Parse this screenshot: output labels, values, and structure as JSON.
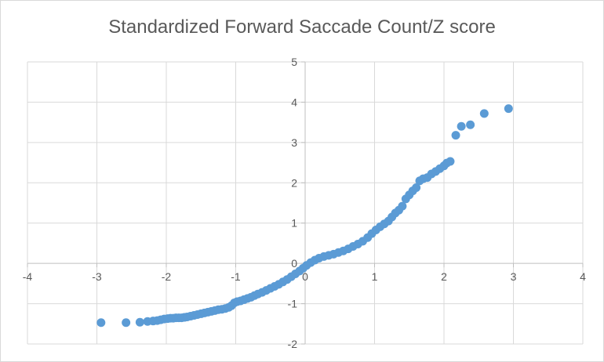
{
  "chart_data": {
    "type": "scatter",
    "title": "Standardized Forward Saccade Count/Z score",
    "xlabel": "",
    "ylabel": "",
    "xlim": [
      -4,
      4
    ],
    "ylim": [
      -2,
      5
    ],
    "xticks": [
      -4,
      -3,
      -2,
      -1,
      0,
      1,
      2,
      3,
      4
    ],
    "yticks": [
      -2,
      -1,
      0,
      1,
      2,
      3,
      4,
      5
    ],
    "grid": true,
    "legend": "none",
    "marker_color": "#5b9bd5",
    "series": [
      {
        "points": [
          [
            -2.94,
            -1.47
          ],
          [
            -2.58,
            -1.47
          ],
          [
            -2.38,
            -1.46
          ],
          [
            -2.27,
            -1.44
          ],
          [
            -2.19,
            -1.43
          ],
          [
            -2.13,
            -1.42
          ],
          [
            -2.08,
            -1.4
          ],
          [
            -2.03,
            -1.38
          ],
          [
            -1.98,
            -1.37
          ],
          [
            -1.94,
            -1.36
          ],
          [
            -1.9,
            -1.36
          ],
          [
            -1.86,
            -1.35
          ],
          [
            -1.82,
            -1.35
          ],
          [
            -1.78,
            -1.35
          ],
          [
            -1.74,
            -1.34
          ],
          [
            -1.7,
            -1.33
          ],
          [
            -1.65,
            -1.31
          ],
          [
            -1.6,
            -1.29
          ],
          [
            -1.55,
            -1.27
          ],
          [
            -1.5,
            -1.25
          ],
          [
            -1.45,
            -1.23
          ],
          [
            -1.4,
            -1.21
          ],
          [
            -1.35,
            -1.19
          ],
          [
            -1.3,
            -1.17
          ],
          [
            -1.25,
            -1.15
          ],
          [
            -1.2,
            -1.14
          ],
          [
            -1.15,
            -1.12
          ],
          [
            -1.1,
            -1.09
          ],
          [
            -1.06,
            -1.05
          ],
          [
            -1.02,
            -0.98
          ],
          [
            -0.98,
            -0.95
          ],
          [
            -0.93,
            -0.93
          ],
          [
            -0.88,
            -0.9
          ],
          [
            -0.83,
            -0.87
          ],
          [
            -0.78,
            -0.84
          ],
          [
            -0.73,
            -0.8
          ],
          [
            -0.68,
            -0.76
          ],
          [
            -0.62,
            -0.72
          ],
          [
            -0.56,
            -0.67
          ],
          [
            -0.5,
            -0.62
          ],
          [
            -0.44,
            -0.57
          ],
          [
            -0.38,
            -0.52
          ],
          [
            -0.32,
            -0.46
          ],
          [
            -0.26,
            -0.4
          ],
          [
            -0.2,
            -0.33
          ],
          [
            -0.14,
            -0.26
          ],
          [
            -0.08,
            -0.19
          ],
          [
            -0.03,
            -0.12
          ],
          [
            0.02,
            -0.05
          ],
          [
            0.08,
            0.02
          ],
          [
            0.14,
            0.08
          ],
          [
            0.2,
            0.13
          ],
          [
            0.27,
            0.17
          ],
          [
            0.34,
            0.2
          ],
          [
            0.41,
            0.23
          ],
          [
            0.48,
            0.27
          ],
          [
            0.55,
            0.31
          ],
          [
            0.62,
            0.36
          ],
          [
            0.69,
            0.42
          ],
          [
            0.76,
            0.48
          ],
          [
            0.83,
            0.55
          ],
          [
            0.9,
            0.64
          ],
          [
            0.96,
            0.74
          ],
          [
            1.02,
            0.83
          ],
          [
            1.08,
            0.91
          ],
          [
            1.14,
            0.98
          ],
          [
            1.2,
            1.05
          ],
          [
            1.25,
            1.15
          ],
          [
            1.3,
            1.25
          ],
          [
            1.35,
            1.32
          ],
          [
            1.4,
            1.42
          ],
          [
            1.45,
            1.6
          ],
          [
            1.5,
            1.7
          ],
          [
            1.55,
            1.8
          ],
          [
            1.6,
            1.88
          ],
          [
            1.65,
            2.05
          ],
          [
            1.7,
            2.1
          ],
          [
            1.76,
            2.13
          ],
          [
            1.82,
            2.22
          ],
          [
            1.88,
            2.28
          ],
          [
            1.94,
            2.35
          ],
          [
            2.0,
            2.42
          ],
          [
            2.04,
            2.49
          ],
          [
            2.09,
            2.53
          ],
          [
            2.17,
            3.18
          ],
          [
            2.25,
            3.4
          ],
          [
            2.38,
            3.44
          ],
          [
            2.58,
            3.72
          ],
          [
            2.93,
            3.84
          ]
        ]
      }
    ]
  }
}
